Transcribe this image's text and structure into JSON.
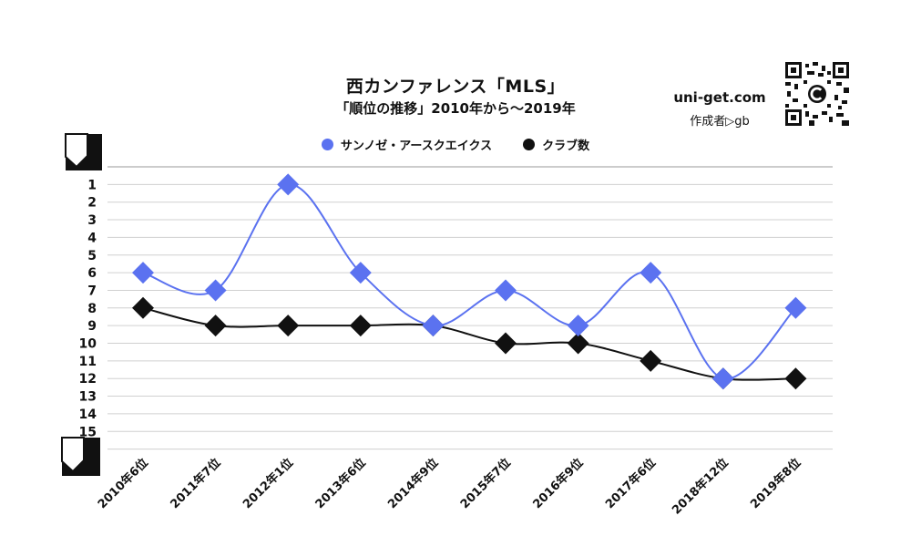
{
  "header": {
    "title": "西カンファレンス「MLS」",
    "subtitle": "「順位の推移」2010年から～2019年",
    "site": "uni-get.com",
    "author": "作成者▷gb"
  },
  "colors": {
    "series_blue": "#5b72f0",
    "series_black": "#111111",
    "grid": "#d0d0d0"
  },
  "chart_data": {
    "type": "line",
    "title": "西カンファレンス「MLS」",
    "subtitle": "「順位の推移」2010年から～2019年",
    "xlabel": "",
    "ylabel": "",
    "categories": [
      "2010年6位",
      "2011年7位",
      "2012年1位",
      "2013年6位",
      "2014年9位",
      "2015年7位",
      "2016年9位",
      "2017年6位",
      "2018年12位",
      "2019年8位"
    ],
    "y_ticks": [
      1,
      2,
      3,
      4,
      5,
      6,
      7,
      8,
      9,
      10,
      11,
      12,
      13,
      14,
      15
    ],
    "ylim": [
      0,
      16
    ],
    "y_inverted": true,
    "grid": true,
    "legend_position": "top-center",
    "series": [
      {
        "name": "サンノゼ・アースクエイクス",
        "values": [
          6,
          7,
          1,
          6,
          9,
          7,
          9,
          6,
          12,
          8
        ],
        "marker": "diamond",
        "smooth": true
      },
      {
        "name": "クラブ数",
        "values": [
          8,
          9,
          9,
          9,
          9,
          10,
          10,
          11,
          12,
          12
        ],
        "marker": "diamond",
        "smooth": true
      }
    ]
  }
}
